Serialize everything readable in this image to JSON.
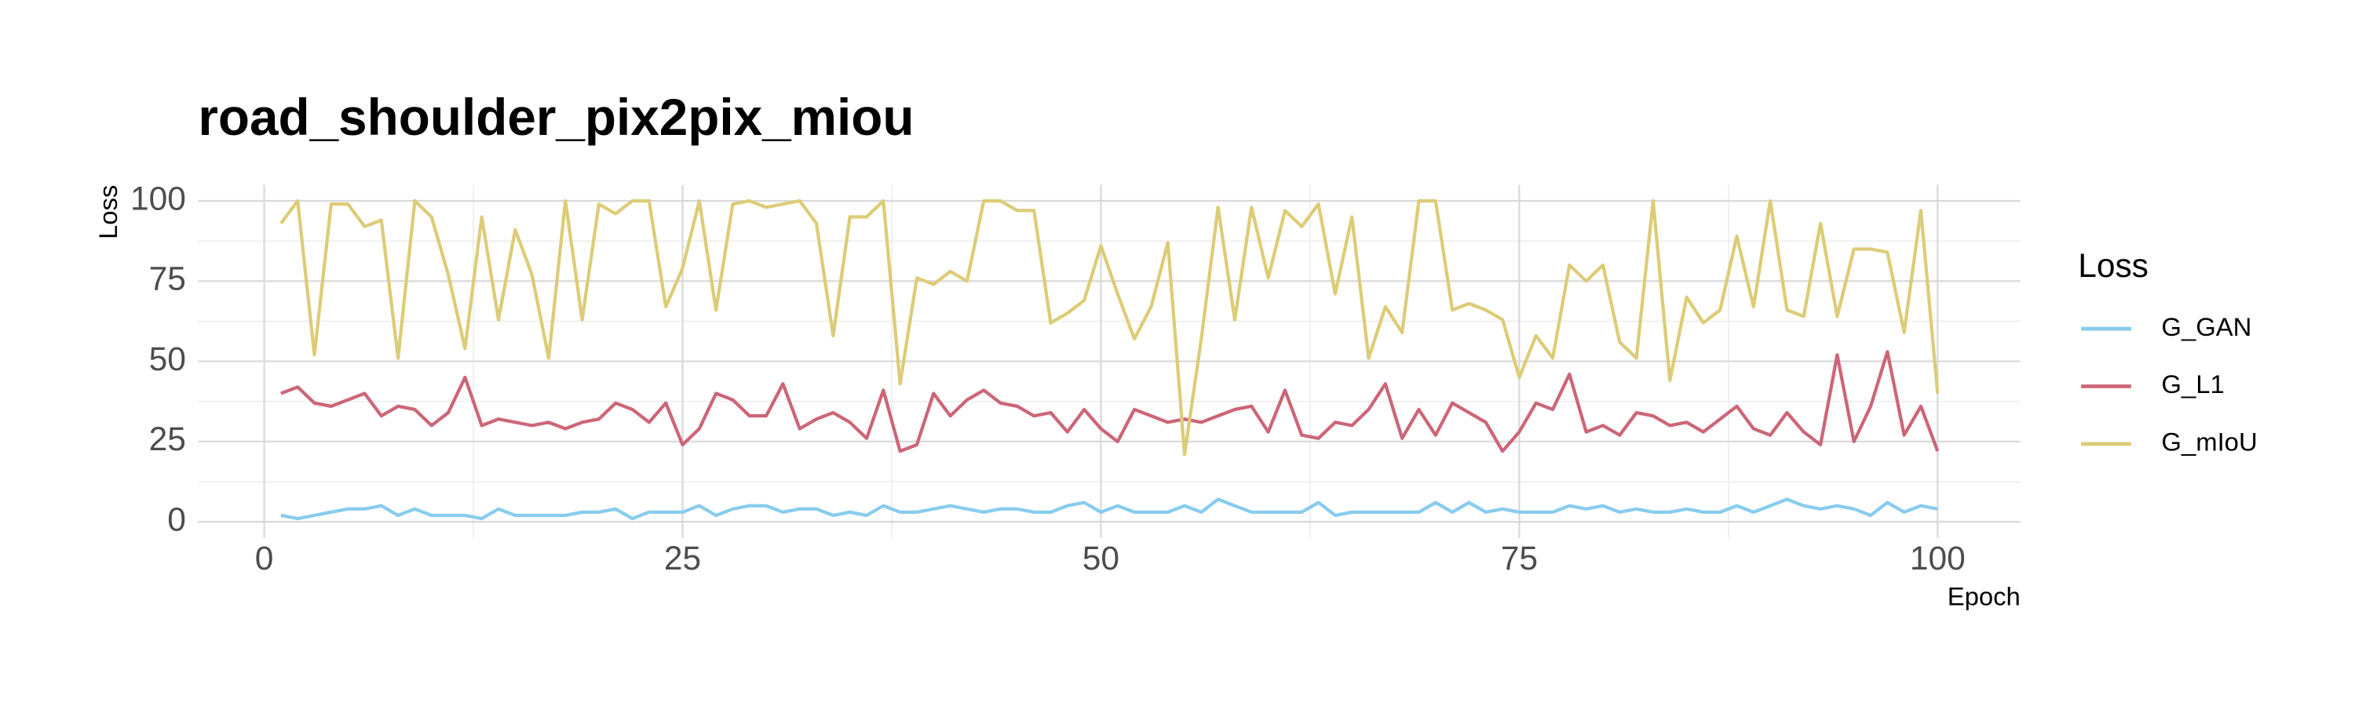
{
  "chart_data": {
    "type": "line",
    "title": "road_shoulder_pix2pix_miou",
    "x_label": "Epoch",
    "y_label": "Loss",
    "legend_title": "Loss",
    "legend_position": "right",
    "grid": true,
    "xlim": [
      -3.95,
      104.95
    ],
    "ylim": [
      -5,
      105
    ],
    "xticks": [
      0,
      25,
      50,
      75,
      100
    ],
    "yticks": [
      0,
      25,
      50,
      75,
      100
    ],
    "x": [
      1,
      2,
      3,
      4,
      5,
      6,
      7,
      8,
      9,
      10,
      11,
      12,
      13,
      14,
      15,
      16,
      17,
      18,
      19,
      20,
      21,
      22,
      23,
      24,
      25,
      26,
      27,
      28,
      29,
      30,
      31,
      32,
      33,
      34,
      35,
      36,
      37,
      38,
      39,
      40,
      41,
      42,
      43,
      44,
      45,
      46,
      47,
      48,
      49,
      50,
      51,
      52,
      53,
      54,
      55,
      56,
      57,
      58,
      59,
      60,
      61,
      62,
      63,
      64,
      65,
      66,
      67,
      68,
      69,
      70,
      71,
      72,
      73,
      74,
      75,
      76,
      77,
      78,
      79,
      80,
      81,
      82,
      83,
      84,
      85,
      86,
      87,
      88,
      89,
      90,
      91,
      92,
      93,
      94,
      95,
      96,
      97,
      98,
      99,
      100
    ],
    "series": [
      {
        "name": "G_GAN",
        "color": "#88ccee",
        "values": [
          2,
          1,
          2,
          3,
          4,
          4,
          5,
          2,
          4,
          2,
          2,
          2,
          1,
          4,
          2,
          2,
          2,
          2,
          3,
          3,
          4,
          1,
          3,
          3,
          3,
          5,
          2,
          4,
          5,
          5,
          3,
          4,
          4,
          2,
          3,
          2,
          5,
          3,
          3,
          4,
          5,
          4,
          3,
          4,
          4,
          3,
          3,
          5,
          6,
          3,
          5,
          3,
          3,
          3,
          5,
          3,
          7,
          5,
          3,
          3,
          3,
          3,
          6,
          2,
          3,
          3,
          3,
          3,
          3,
          6,
          3,
          6,
          3,
          4,
          3,
          3,
          3,
          5,
          4,
          5,
          3,
          4,
          3,
          3,
          4,
          3,
          3,
          5,
          3,
          5,
          7,
          5,
          4,
          5,
          4,
          2,
          6,
          3,
          5,
          4
        ]
      },
      {
        "name": "G_L1",
        "color": "#cc6677",
        "values": [
          40,
          42,
          37,
          36,
          38,
          40,
          33,
          36,
          35,
          30,
          34,
          45,
          30,
          32,
          31,
          30,
          31,
          29,
          31,
          32,
          37,
          35,
          31,
          37,
          24,
          29,
          40,
          38,
          33,
          33,
          43,
          29,
          32,
          34,
          31,
          26,
          41,
          22,
          24,
          40,
          33,
          38,
          41,
          37,
          36,
          33,
          34,
          28,
          35,
          29,
          25,
          35,
          33,
          31,
          32,
          31,
          33,
          35,
          36,
          28,
          41,
          27,
          26,
          31,
          30,
          35,
          43,
          26,
          35,
          27,
          37,
          34,
          31,
          22,
          28,
          37,
          35,
          46,
          28,
          30,
          27,
          34,
          33,
          30,
          31,
          28,
          32,
          36,
          29,
          27,
          34,
          28,
          24,
          52,
          25,
          36,
          53,
          27,
          36,
          22
        ]
      },
      {
        "name": "G_mIoU",
        "color": "#ddcc77",
        "values": [
          93,
          100,
          52,
          99,
          99,
          92,
          94,
          51,
          100,
          95,
          77,
          54,
          95,
          63,
          91,
          77,
          51,
          100,
          63,
          99,
          96,
          100,
          100,
          67,
          79,
          100,
          66,
          99,
          100,
          98,
          99,
          100,
          93,
          58,
          95,
          95,
          100,
          43,
          76,
          74,
          78,
          75,
          100,
          100,
          97,
          97,
          62,
          65,
          69,
          86,
          71,
          57,
          67,
          87,
          21,
          57,
          98,
          63,
          98,
          76,
          97,
          92,
          99,
          71,
          95,
          51,
          67,
          59,
          100,
          100,
          66,
          68,
          66,
          63,
          45,
          58,
          51,
          80,
          75,
          80,
          56,
          51,
          100,
          44,
          70,
          62,
          66,
          89,
          67,
          100,
          66,
          64,
          93,
          64,
          85,
          85,
          84,
          59,
          97,
          40
        ]
      }
    ]
  }
}
